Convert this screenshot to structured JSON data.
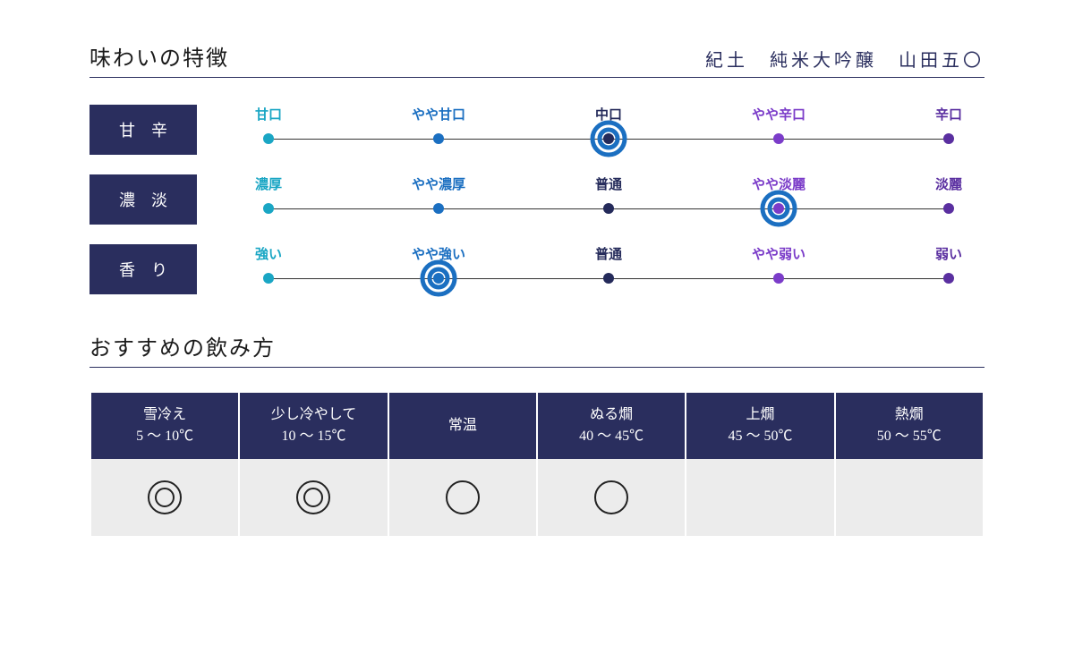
{
  "colors": {
    "navy": "#2a2e5e",
    "rule": "#2a2e5e",
    "title": "#1a1a1a",
    "cell_bg": "#ececec",
    "track": "#333333"
  },
  "header": {
    "section_title": "味わいの特徴",
    "product_name": "紀土　純米大吟醸　山田五〇"
  },
  "scales": {
    "point_colors": [
      "#1aa6c4",
      "#1b6fc1",
      "#242a5a",
      "#7b3cc9",
      "#5a2fa0"
    ],
    "selector_color": "#1b6fc1",
    "selector_outer_d": 36,
    "selector_inner_d": 20,
    "selector_stroke": 5,
    "rows": [
      {
        "label": "甘辛",
        "points": [
          "甘口",
          "やや甘口",
          "中口",
          "やや辛口",
          "辛口"
        ],
        "selected": 2
      },
      {
        "label": "濃淡",
        "points": [
          "濃厚",
          "やや濃厚",
          "普通",
          "やや淡麗",
          "淡麗"
        ],
        "selected": 3
      },
      {
        "label": "香り",
        "points": [
          "強い",
          "やや強い",
          "普通",
          "やや弱い",
          "弱い"
        ],
        "selected": 1
      }
    ]
  },
  "temp": {
    "title": "おすすめの飲み方",
    "columns": [
      {
        "name": "雪冷え",
        "range": "5 〜 10℃",
        "mark": "double"
      },
      {
        "name": "少し冷やして",
        "range": "10 〜 15℃",
        "mark": "double"
      },
      {
        "name": "常温",
        "range": "",
        "mark": "single"
      },
      {
        "name": "ぬる燗",
        "range": "40 〜 45℃",
        "mark": "single"
      },
      {
        "name": "上燗",
        "range": "45 〜 50℃",
        "mark": ""
      },
      {
        "name": "熱燗",
        "range": "50 〜 55℃",
        "mark": ""
      }
    ]
  }
}
